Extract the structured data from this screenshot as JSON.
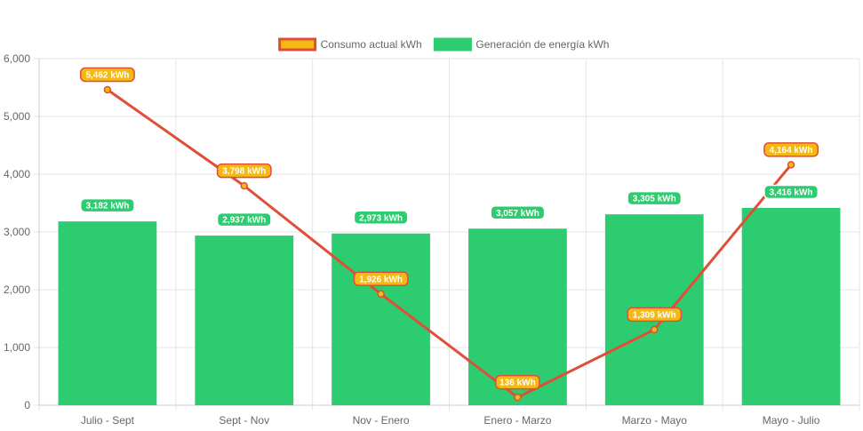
{
  "chart_data": {
    "type": "bar",
    "categories": [
      "Julio - Sept",
      "Sept - Nov",
      "Nov - Enero",
      "Enero - Marzo",
      "Marzo - Mayo",
      "Mayo - Julio"
    ],
    "ylim": [
      0,
      6000
    ],
    "yticks": [
      "0",
      "1,000",
      "2,000",
      "3,000",
      "4,000",
      "5,000",
      "6,000"
    ],
    "ytick_values": [
      0,
      1000,
      2000,
      3000,
      4000,
      5000,
      6000
    ],
    "grid": true,
    "legend_position": "top",
    "series": [
      {
        "name": "Consumo actual kWh",
        "type": "line",
        "values": [
          5462,
          3798,
          1926,
          136,
          1309,
          4164
        ],
        "labels": [
          "5,462 kWh",
          "3,798 kWh",
          "1,926 kWh",
          "136 kWh",
          "1,309 kWh",
          "4,164 kWh"
        ],
        "line_color": "#e04e39",
        "marker_color": "#f5b914",
        "label_bg": "#f5b914",
        "label_border": "#e04e39"
      },
      {
        "name": "Generación de energía kWh",
        "type": "bar",
        "values": [
          3182,
          2937,
          2973,
          3057,
          3305,
          3416
        ],
        "labels": [
          "3,182 kWh",
          "2,937 kWh",
          "2,973 kWh",
          "3,057 kWh",
          "3,305 kWh",
          "3,416 kWh"
        ],
        "color": "#2ecc71"
      }
    ]
  }
}
